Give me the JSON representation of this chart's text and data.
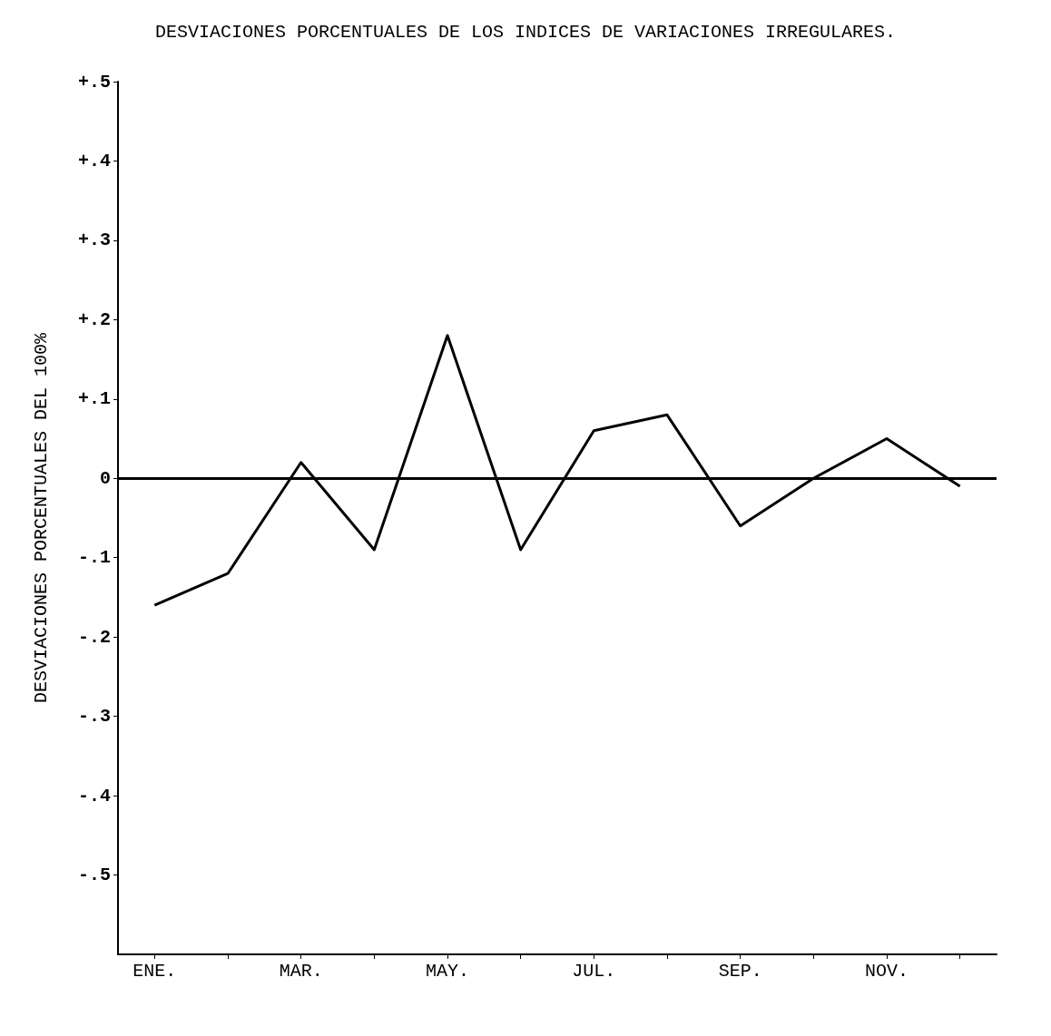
{
  "chart_data": {
    "type": "line",
    "title": "DESVIACIONES PORCENTUALES DE LOS INDICES DE VARIACIONES IRREGULARES.",
    "ylabel": "DESVIACIONES PORCENTUALES DEL 100%",
    "categories": [
      "ENE.",
      null,
      "MAR.",
      null,
      "MAY.",
      null,
      "JUL.",
      null,
      "SEP.",
      null,
      "NOV.",
      null
    ],
    "series": [
      {
        "color": "#000000",
        "values": [
          -0.16,
          -0.12,
          0.02,
          -0.09,
          0.18,
          -0.09,
          0.06,
          0.08,
          -0.06,
          0,
          0.05,
          -0.01
        ]
      }
    ],
    "ylim": [
      -0.6,
      0.5
    ],
    "yticks": [
      {
        "value": 0.5,
        "label": "+.5"
      },
      {
        "value": 0.4,
        "label": "+.4"
      },
      {
        "value": 0.3,
        "label": "+.3"
      },
      {
        "value": 0.2,
        "label": "+.2"
      },
      {
        "value": 0.1,
        "label": "+.1"
      },
      0,
      {
        "value": -0.1,
        "label": "-.1"
      },
      {
        "value": -0.2,
        "label": "-.2"
      },
      {
        "value": -0.3,
        "label": "-.3"
      },
      {
        "value": -0.4,
        "label": "-.4"
      },
      {
        "value": -0.5,
        "label": "-.5"
      }
    ],
    "ref_lines": [
      {
        "axis": "y",
        "value": 0,
        "color": "#000000"
      }
    ],
    "grid": false,
    "marker": "none",
    "line_style": "solid"
  }
}
